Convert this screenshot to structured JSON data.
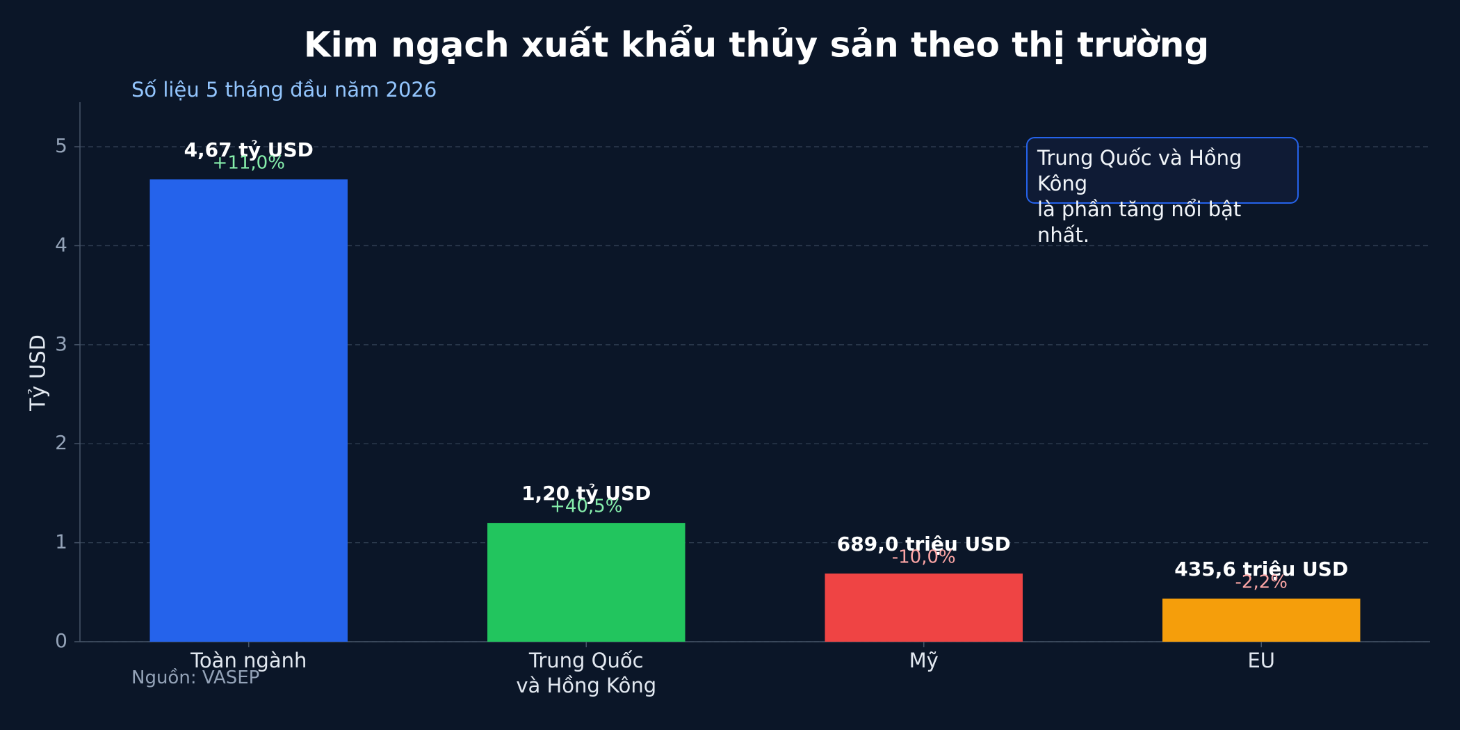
{
  "chart_data": {
    "type": "bar",
    "title": "Kim ngạch xuất khẩu thủy sản theo thị trường",
    "subtitle": "Số liệu 5 tháng đầu năm 2026",
    "y_label": "Tỷ USD",
    "categories": [
      "Toàn ngành",
      "Trung Quốc\nvà Hồng Kông",
      "Mỹ",
      "EU"
    ],
    "values": [
      4.67,
      1.2,
      0.689,
      0.4356
    ],
    "value_labels": [
      "4,67 tỷ USD",
      "1,20 tỷ USD",
      "689,0 triệu USD",
      "435,6 triệu USD"
    ],
    "growth_labels": [
      "+11,0%",
      "+40,5%",
      "-10,0%",
      "-2,2%"
    ],
    "growth_colors": [
      "#86efac",
      "#86efac",
      "#fca5a5",
      "#fca5a5"
    ],
    "colors": [
      "#2563eb",
      "#22c55e",
      "#ef4444",
      "#f59e0b"
    ],
    "ylim": [
      0,
      5.45
    ],
    "yticks": [
      0,
      1,
      2,
      3,
      4,
      5
    ],
    "grid": true,
    "annotation": "Trung Quốc và Hồng Kông\nlà phần tăng nổi bật nhất.",
    "source": "Nguồn: VASEP"
  }
}
